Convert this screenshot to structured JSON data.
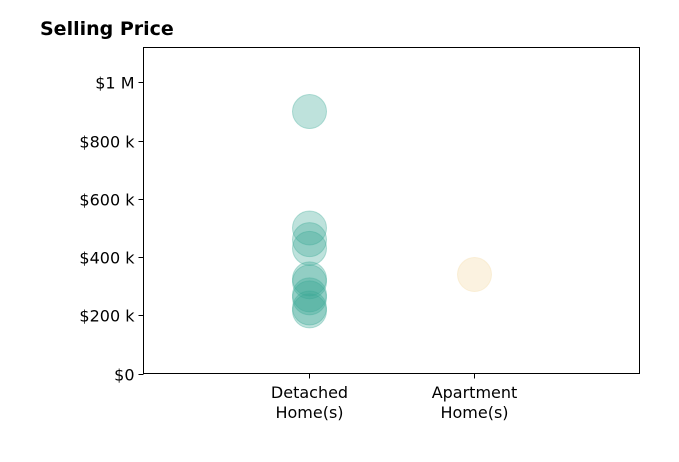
{
  "chart_data": {
    "type": "scatter",
    "title": "Selling Price",
    "xlabel": "",
    "ylabel": "",
    "categories": [
      [
        "Detached",
        "Home(s)"
      ],
      [
        "Apartment",
        "Home(s)"
      ]
    ],
    "ylim": [
      0,
      1120000
    ],
    "yticks": [
      {
        "value": 0,
        "label": "$0"
      },
      {
        "value": 200000,
        "label": "$200 k"
      },
      {
        "value": 400000,
        "label": "$400 k"
      },
      {
        "value": 600000,
        "label": "$600 k"
      },
      {
        "value": 800000,
        "label": "$800 k"
      },
      {
        "value": 1000000,
        "label": "$1 M"
      }
    ],
    "grid": false,
    "series": [
      {
        "category": 0,
        "color": "#3aa896",
        "values": [
          900000,
          500000,
          460000,
          430000,
          325000,
          315000,
          270000,
          260000,
          225000,
          215000
        ]
      },
      {
        "category": 1,
        "color": "#f3d9a2",
        "values": [
          340000
        ]
      }
    ]
  }
}
